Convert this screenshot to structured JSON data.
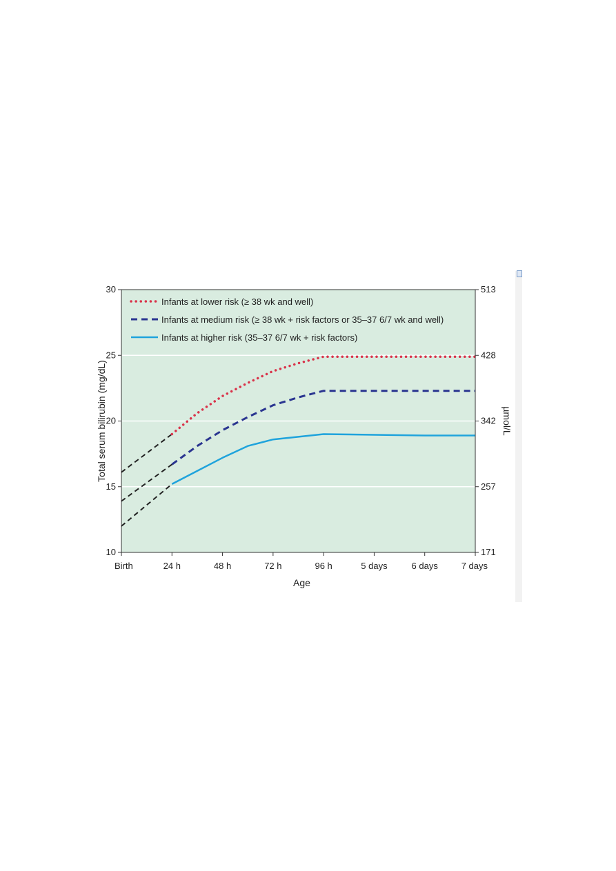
{
  "chart_data": {
    "type": "line",
    "title": "",
    "xlabel": "Age",
    "ylabel": "Total serum bilirubin (mg/dL)",
    "y2label": "µmol/L",
    "categories": [
      "Birth",
      "24 h",
      "48 h",
      "72 h",
      "96 h",
      "5 days",
      "6 days",
      "7 days"
    ],
    "ylim": [
      10,
      30
    ],
    "yticks": [
      "10",
      "15",
      "20",
      "25",
      "30"
    ],
    "y2ticks": [
      "171",
      "257",
      "342",
      "428",
      "513"
    ],
    "y2_values": [
      171,
      257,
      342,
      428,
      513
    ],
    "background_color": "#d9ece0",
    "grid": true,
    "legend_position": "top-left",
    "series": [
      {
        "name": "Infants at lower risk (≥ 38 wk and well)",
        "style": "dotted",
        "color": "#d9334a",
        "x": [
          1,
          1.5,
          2,
          2.5,
          3,
          3.5,
          4,
          5,
          6,
          7
        ],
        "y": [
          19.0,
          20.6,
          21.9,
          22.9,
          23.8,
          24.4,
          24.9,
          24.9,
          24.9,
          24.9
        ],
        "extrapolation": {
          "x": [
            0,
            1
          ],
          "y": [
            16.1,
            19.0
          ]
        }
      },
      {
        "name": "Infants at medium risk (≥ 38 wk + risk factors or 35–37 6/7 wk and well)",
        "style": "dashed",
        "color": "#2a3590",
        "x": [
          1,
          1.5,
          2,
          2.5,
          3,
          3.5,
          4,
          5,
          6,
          7
        ],
        "y": [
          16.7,
          18.1,
          19.3,
          20.3,
          21.2,
          21.8,
          22.3,
          22.3,
          22.3,
          22.3
        ],
        "extrapolation": {
          "x": [
            0,
            1
          ],
          "y": [
            13.9,
            16.7
          ]
        }
      },
      {
        "name": "Infants at higher risk (35–37 6/7 wk + risk factors)",
        "style": "solid",
        "color": "#1fa3dc",
        "x": [
          1,
          1.5,
          2,
          2.5,
          3,
          3.5,
          4,
          5,
          6,
          7
        ],
        "y": [
          15.2,
          16.2,
          17.2,
          18.1,
          18.6,
          18.8,
          19.0,
          18.95,
          18.9,
          18.9
        ],
        "extrapolation": {
          "x": [
            0,
            1
          ],
          "y": [
            12.0,
            15.2
          ]
        }
      }
    ],
    "extrapolation_color": "#222222"
  }
}
